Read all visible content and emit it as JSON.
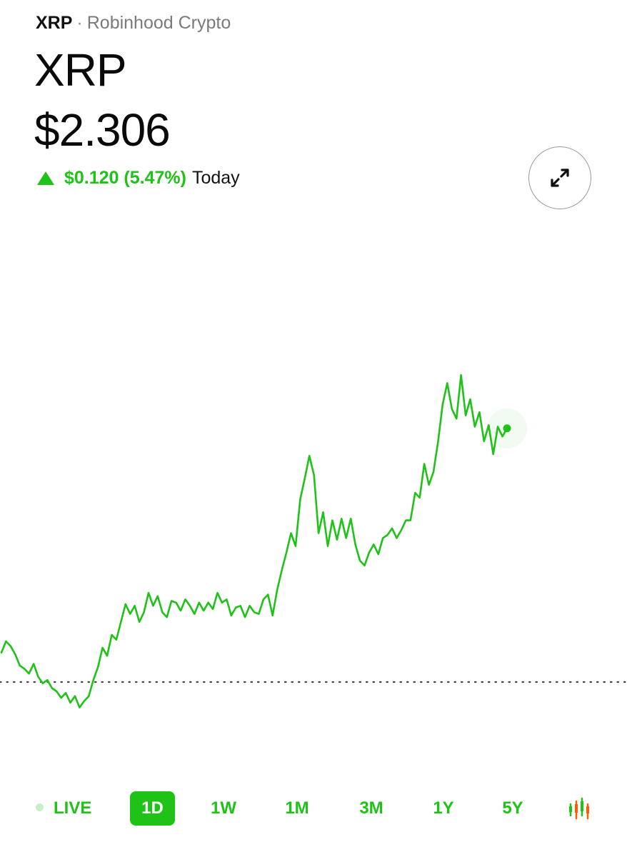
{
  "header": {
    "symbol": "XRP",
    "separator": "·",
    "source": "Robinhood Crypto",
    "title": "XRP",
    "price": "$2.306",
    "change": "$0.120 (5.47%)",
    "change_period": "Today",
    "change_direction": "up",
    "expand_icon": "expand-arrows-icon"
  },
  "colors": {
    "accent": "#1fc216",
    "reference_line": "#444444"
  },
  "range_selector": {
    "live_label": "LIVE",
    "options": [
      "1D",
      "1W",
      "1M",
      "3M",
      "1Y",
      "5Y"
    ],
    "selected": "1D",
    "chart_type_icon": "candlestick-chart-icon"
  },
  "chart_data": {
    "type": "line",
    "reference_line": "dotted previous close",
    "y_visible_range": [
      2.12,
      2.39
    ],
    "values": [
      2.167,
      2.174,
      2.171,
      2.166,
      2.159,
      2.157,
      2.154,
      2.16,
      2.152,
      2.148,
      2.15,
      2.145,
      2.143,
      2.139,
      2.142,
      2.136,
      2.14,
      2.133,
      2.137,
      2.14,
      2.15,
      2.158,
      2.17,
      2.165,
      2.178,
      2.175,
      2.186,
      2.197,
      2.191,
      2.196,
      2.186,
      2.192,
      2.204,
      2.196,
      2.202,
      2.192,
      2.189,
      2.199,
      2.198,
      2.193,
      2.2,
      2.196,
      2.191,
      2.198,
      2.193,
      2.198,
      2.194,
      2.204,
      2.198,
      2.2,
      2.19,
      2.195,
      2.196,
      2.189,
      2.196,
      2.192,
      2.191,
      2.2,
      2.203,
      2.19,
      2.206,
      2.218,
      2.229,
      2.241,
      2.233,
      2.262,
      2.275,
      2.289,
      2.277,
      2.241,
      2.254,
      2.233,
      2.249,
      2.237,
      2.25,
      2.238,
      2.25,
      2.234,
      2.224,
      2.221,
      2.229,
      2.234,
      2.228,
      2.238,
      2.24,
      2.244,
      2.238,
      2.243,
      2.249,
      2.249,
      2.266,
      2.263,
      2.284,
      2.271,
      2.279,
      2.298,
      2.321,
      2.334,
      2.318,
      2.312,
      2.339,
      2.314,
      2.324,
      2.307,
      2.316,
      2.298,
      2.308,
      2.29,
      2.307,
      2.301,
      2.306
    ]
  }
}
